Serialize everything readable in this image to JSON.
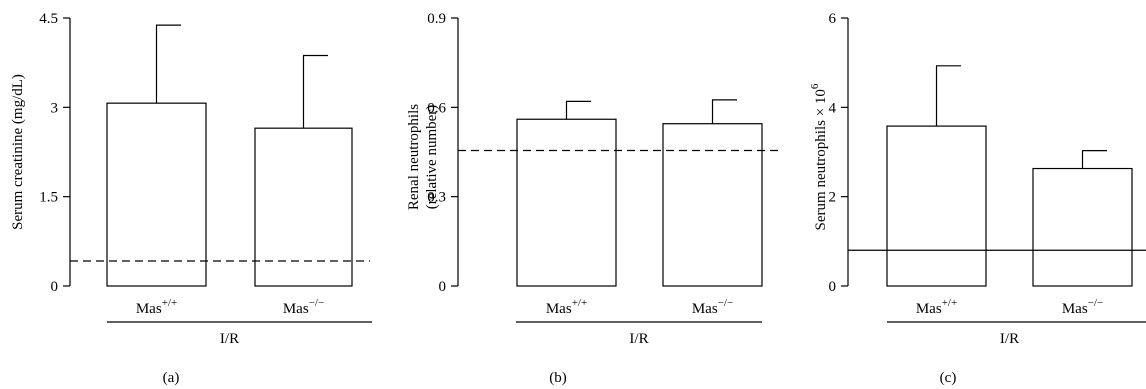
{
  "colors": {
    "ink": "#000000",
    "bar_fill": "#ffffff"
  },
  "chart_data": [
    {
      "type": "bar",
      "panel_label": "(a)",
      "ylabel": "Serum creatinine (mg/dL)",
      "ylim": [
        0,
        4.5
      ],
      "yticks": [
        "0",
        "1.5",
        "3",
        "4.5"
      ],
      "categories": [
        {
          "base": "Mas",
          "sup": "+/+"
        },
        {
          "base": "Mas",
          "sup": "−/−"
        }
      ],
      "group_label": "I/R",
      "values": [
        3.07,
        2.65
      ],
      "error_upper": [
        4.38,
        3.87
      ],
      "reference_line": {
        "value": 0.42,
        "style": "dashed"
      }
    },
    {
      "type": "bar",
      "panel_label": "(b)",
      "ylabel_lines": [
        "Renal neutrophils",
        "(relative number)"
      ],
      "ylim": [
        0,
        0.9
      ],
      "yticks": [
        "0",
        "0.3",
        "0.6",
        "0.9"
      ],
      "categories": [
        {
          "base": "Mas",
          "sup": "+/+"
        },
        {
          "base": "Mas",
          "sup": "−/−"
        }
      ],
      "group_label": "I/R",
      "values": [
        0.56,
        0.545
      ],
      "error_upper": [
        0.62,
        0.625
      ],
      "reference_line": {
        "value": 0.455,
        "style": "dashed"
      }
    },
    {
      "type": "bar",
      "panel_label": "(c)",
      "ylabel_base": "Serum neutrophils × 10",
      "ylabel_sup": "6",
      "ylim": [
        0,
        6
      ],
      "yticks": [
        "0",
        "2",
        "4",
        "6"
      ],
      "categories": [
        {
          "base": "Mas",
          "sup": "+/+"
        },
        {
          "base": "Mas",
          "sup": "−/−"
        }
      ],
      "group_label": "I/R",
      "values": [
        3.58,
        2.63
      ],
      "error_upper": [
        4.93,
        3.03
      ],
      "reference_line": {
        "value": 0.8,
        "style": "solid"
      }
    }
  ]
}
